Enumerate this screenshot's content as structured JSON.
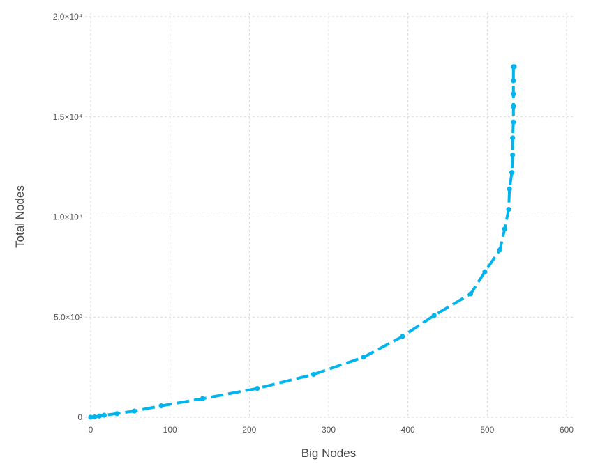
{
  "chart_data": {
    "type": "line",
    "title": "",
    "xlabel": "Big Nodes",
    "ylabel": "Total Nodes",
    "xlim": [
      0,
      600
    ],
    "ylim": [
      0,
      20000
    ],
    "x_ticks": [
      {
        "value": 0,
        "label": "0"
      },
      {
        "value": 100,
        "label": "100"
      },
      {
        "value": 200,
        "label": "200"
      },
      {
        "value": 300,
        "label": "300"
      },
      {
        "value": 400,
        "label": "400"
      },
      {
        "value": 500,
        "label": "500"
      },
      {
        "value": 600,
        "label": "600"
      }
    ],
    "y_ticks": [
      {
        "value": 0,
        "label": "0"
      },
      {
        "value": 5000,
        "label": "5.0×10³"
      },
      {
        "value": 10000,
        "label": "1.0×10⁴"
      },
      {
        "value": 15000,
        "label": "1.5×10⁴"
      },
      {
        "value": 20000,
        "label": "2.0×10⁴"
      }
    ],
    "grid": true,
    "legend": "none",
    "series": [
      {
        "color": "#00b4ee",
        "line_style": "dashed",
        "markers": true,
        "x": [
          0,
          5,
          11,
          17,
          33,
          55,
          89,
          141,
          210,
          281,
          344,
          393,
          433,
          479,
          497,
          516,
          522,
          527,
          528,
          531,
          532,
          532,
          533,
          533,
          533,
          533,
          533,
          534
        ],
        "y": [
          0,
          13,
          60,
          100,
          180,
          310,
          570,
          930,
          1440,
          2140,
          3000,
          4030,
          5080,
          6160,
          7260,
          8360,
          9400,
          10380,
          11400,
          12220,
          13100,
          13950,
          14740,
          15520,
          16140,
          16800,
          17500,
          17500
        ]
      }
    ]
  }
}
